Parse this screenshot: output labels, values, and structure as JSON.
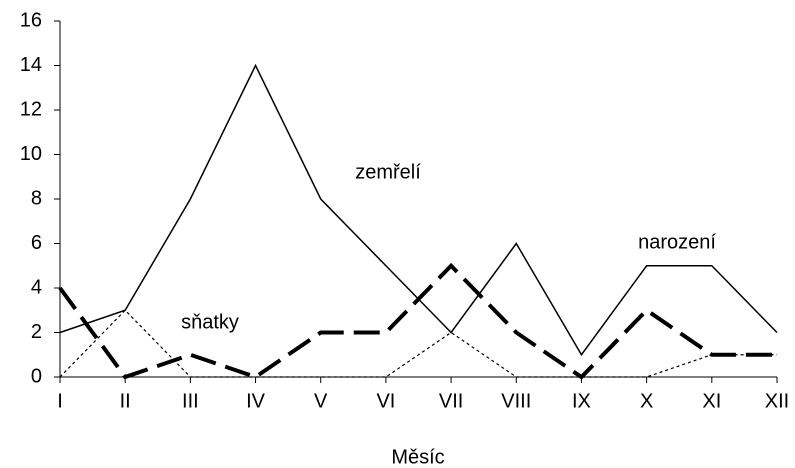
{
  "chart_data": {
    "type": "line",
    "x_label": "Měsíc",
    "categories": [
      "I",
      "II",
      "III",
      "IV",
      "V",
      "VI",
      "VII",
      "VIII",
      "IX",
      "X",
      "XI",
      "XII"
    ],
    "series": [
      {
        "name": "zemřelí",
        "color": "#000000",
        "style": "solid",
        "values": [
          2,
          3,
          8,
          14,
          8,
          5,
          2,
          6,
          1,
          5,
          5,
          2
        ]
      },
      {
        "name": "narození",
        "color": "#000000",
        "style": "dashed",
        "values": [
          4,
          0,
          1,
          0,
          2,
          2,
          5,
          2,
          0,
          3,
          1,
          1
        ]
      },
      {
        "name": "sňatky",
        "color": "#000000",
        "style": "dotted",
        "values": [
          0,
          3,
          0,
          0,
          0,
          0,
          2,
          0,
          0,
          0,
          1,
          1
        ]
      }
    ],
    "ylim": [
      0,
      16
    ],
    "yticks": [
      0,
      2,
      4,
      6,
      8,
      10,
      12,
      14,
      16
    ],
    "grid": false
  }
}
